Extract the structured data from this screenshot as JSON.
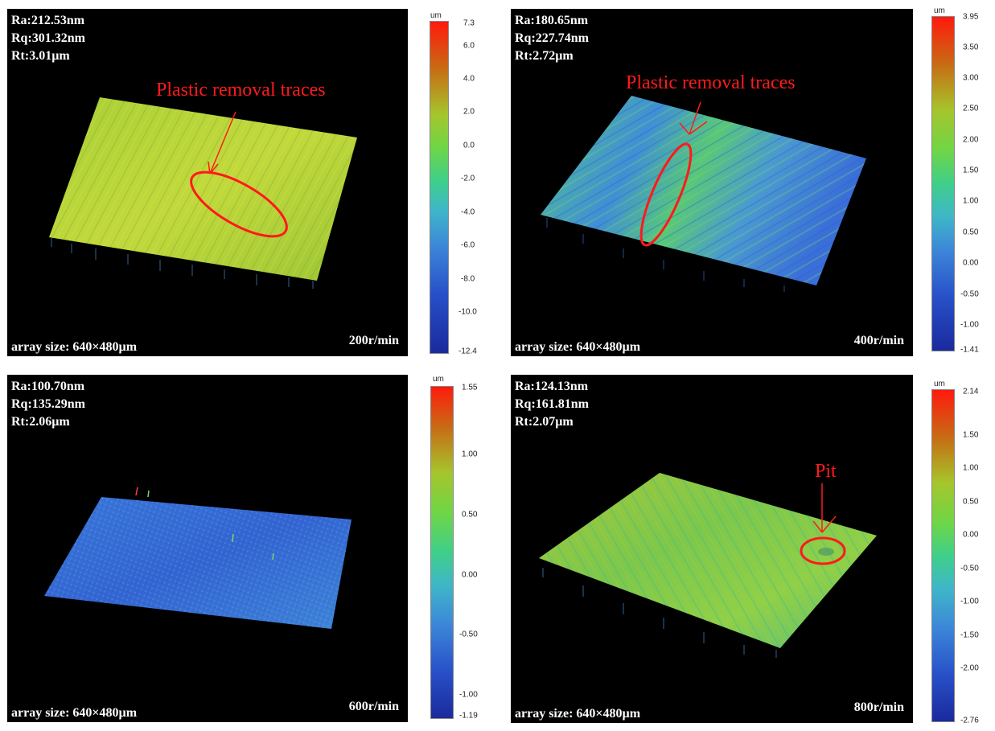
{
  "panels": [
    {
      "stats": [
        "Ra:212.53nm",
        "Rq:301.32nm",
        "Rt:3.01µm"
      ],
      "array_size": "array size: 640×480µm",
      "speed": "200r/min",
      "annotation": "Plastic removal traces",
      "unit": "um",
      "colorbar_ticks": [
        "7.3",
        "6.0",
        "4.0",
        "2.0",
        "0.0",
        "-2.0",
        "-4.0",
        "-6.0",
        "-8.0",
        "-10.0",
        "-12.4"
      ],
      "surface_color": "#b4d23a"
    },
    {
      "stats": [
        "Ra:180.65nm",
        "Rq:227.74nm",
        "Rt:2.72µm"
      ],
      "array_size": "array size: 640×480µm",
      "speed": "400r/min",
      "annotation": "Plastic removal traces",
      "unit": "um",
      "colorbar_ticks": [
        "3.95",
        "3.50",
        "3.00",
        "2.50",
        "2.00",
        "1.50",
        "1.00",
        "0.50",
        "0.00",
        "-0.50",
        "-1.00",
        "-1.41"
      ],
      "surface_color": "#4fc28a"
    },
    {
      "stats": [
        "Ra:100.70nm",
        "Rq:135.29nm",
        "Rt:2.06µm"
      ],
      "array_size": "array size: 640×480µm",
      "speed": "600r/min",
      "annotation": "",
      "unit": "um",
      "colorbar_ticks": [
        "1.55",
        "1.00",
        "0.50",
        "0.00",
        "-0.50",
        "-1.00",
        "-1.19"
      ],
      "surface_color": "#3d6fd6"
    },
    {
      "stats": [
        "Ra:124.13nm",
        "Rq:161.81nm",
        "Rt:2.07µm"
      ],
      "array_size": "array size: 640×480µm",
      "speed": "800r/min",
      "annotation": "Pit",
      "unit": "um",
      "colorbar_ticks": [
        "2.14",
        "1.50",
        "1.00",
        "0.50",
        "0.00",
        "-0.50",
        "-1.00",
        "-1.50",
        "-2.00",
        "-2.76"
      ],
      "surface_color": "#8dc84a"
    }
  ],
  "colors": {
    "annotation": "#ff1a1a",
    "background": "#000000",
    "text": "#ffffff"
  }
}
